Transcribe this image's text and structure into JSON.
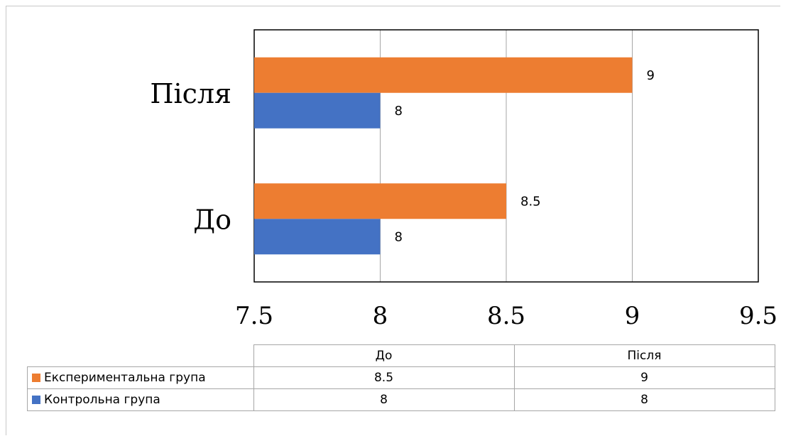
{
  "chart_data": {
    "type": "bar",
    "orientation": "horizontal",
    "categories": [
      "Після",
      "До"
    ],
    "series": [
      {
        "name": "Експериментальна група",
        "color": "#ED7D31",
        "values": [
          9,
          8.5
        ]
      },
      {
        "name": "Контрольна група",
        "color": "#4472C4",
        "values": [
          8,
          8
        ]
      }
    ],
    "xlim": [
      7.5,
      9.5
    ],
    "xticks": [
      "7.5",
      "8",
      "8.5",
      "9",
      "9.5"
    ],
    "grid": true,
    "data_labels": true,
    "data_table": {
      "columns": [
        "До",
        "Після"
      ],
      "rows": [
        {
          "name": "Експериментальна група",
          "color": "#ED7D31",
          "values": [
            "8.5",
            "9"
          ]
        },
        {
          "name": "Контрольна група",
          "color": "#4472C4",
          "values": [
            "8",
            "8"
          ]
        }
      ]
    }
  }
}
